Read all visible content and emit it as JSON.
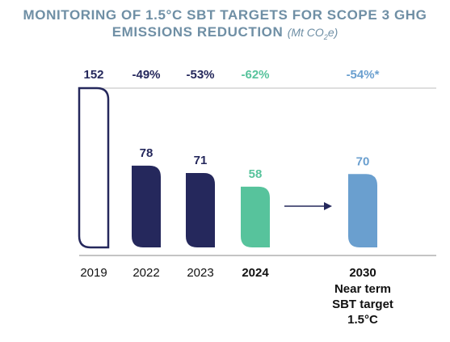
{
  "header": {
    "title_line1": "MONITORING OF 1.5°C SBT TARGETS FOR SCOPE 3 GHG",
    "title_line2": "EMISSIONS REDUCTION",
    "unit_prefix": "(Mt CO",
    "unit_sub": "2",
    "unit_suffix": "e)"
  },
  "colors": {
    "title": "#6f8fa5",
    "navy": "#25285c",
    "green": "#57c39c",
    "blue": "#6a9fcf",
    "outline": "#25285c"
  },
  "chart_data": {
    "type": "bar",
    "title": "MONITORING OF 1.5°C SBT TARGETS FOR SCOPE 3 GHG EMISSIONS REDUCTION (Mt CO2e)",
    "categories": [
      "2019",
      "2022",
      "2023",
      "2024",
      "2030"
    ],
    "category_sublabels": [
      "",
      "",
      "",
      "",
      "Near term\nSBT target\n1.5°C"
    ],
    "values": [
      152,
      78,
      71,
      58,
      70
    ],
    "value_labels": [
      "152",
      "78",
      "71",
      "58",
      "70"
    ],
    "change_labels": [
      "",
      "-49%",
      "-53%",
      "-62%",
      "-54%*"
    ],
    "bar_styles": [
      "outline",
      "navy",
      "navy",
      "green",
      "blue"
    ],
    "ylim": [
      0,
      152
    ],
    "grid": false,
    "annotations": [
      "arrow from 2024 to 2030"
    ]
  }
}
